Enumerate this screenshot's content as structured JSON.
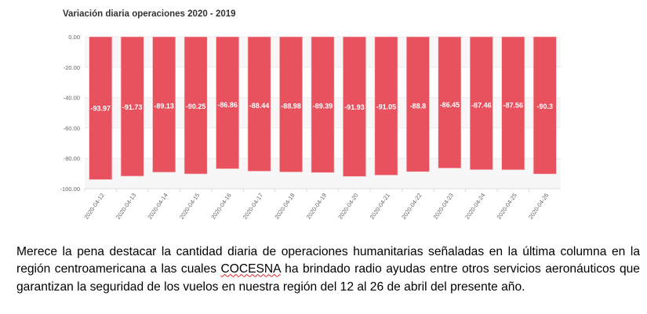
{
  "chart_data": {
    "type": "bar",
    "title": "Variación diaria operaciones 2020 - 2019",
    "categories": [
      "2020-04-12",
      "2020-04-13",
      "2020-04-14",
      "2020-04-15",
      "2020-04-16",
      "2020-04-17",
      "2020-04-18",
      "2020-04-19",
      "2020-04-20",
      "2020-04-21",
      "2020-04-22",
      "2020-04-23",
      "2020-04-24",
      "2020-04-25",
      "2020-04-26"
    ],
    "values": [
      -93.97,
      -91.73,
      -89.13,
      -90.25,
      -86.86,
      -88.44,
      -88.98,
      -89.39,
      -91.93,
      -91.05,
      -88.8,
      -86.45,
      -87.46,
      -87.56,
      -90.3
    ],
    "data_labels": [
      "-93.97",
      "-91.73",
      "-89.13",
      "-90.25",
      "-86.86",
      "-88.44",
      "-88.98",
      "-89.39",
      "-91.93",
      "-91.05",
      "-88.8",
      "-86.45",
      "-87.46",
      "-87.56",
      "-90.3"
    ],
    "yticks": [
      "0.00",
      "-20.00",
      "-40.00",
      "-60.00",
      "-80.00",
      "-100.00"
    ],
    "ylim": [
      -100,
      0
    ],
    "xlabel": "",
    "ylabel": "",
    "grid": true,
    "bar_color": "#e8525f"
  },
  "paragraph": {
    "before": "Merece la pena destacar la cantidad diaria de operaciones humanitarias señaladas en la última columna en la región centroamericana a las cuales ",
    "highlight": "COCESNA",
    "after": " ha brindado radio ayudas entre otros servicios aeronáuticos que garantizan la seguridad de los vuelos en nuestra región del 12 al 26 de abril del presente año."
  }
}
